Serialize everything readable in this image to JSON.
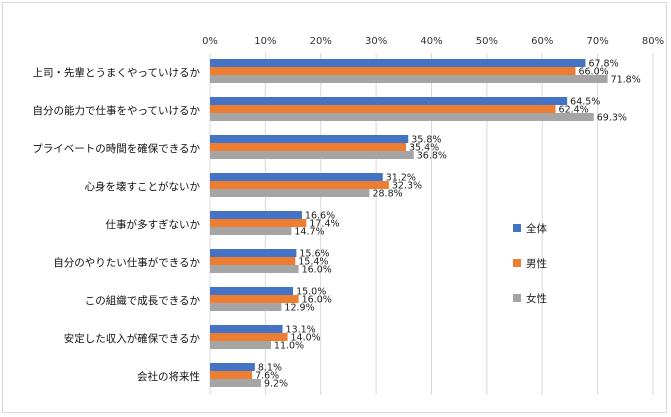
{
  "chart_data": {
    "type": "bar",
    "orientation": "horizontal",
    "x_ticks": [
      "0%",
      "10%",
      "20%",
      "30%",
      "40%",
      "50%",
      "60%",
      "70%",
      "80%"
    ],
    "xlim": [
      0,
      80
    ],
    "grid": true,
    "legend_position": "right",
    "categories": [
      "上司・先輩とうまくやっていけるか",
      "自分の能力で仕事をやっていけるか",
      "プライベートの時間を確保できるか",
      "心身を壊すことがないか",
      "仕事が多すぎないか",
      "自分のやりたい仕事ができるか",
      "この組織で成長できるか",
      "安定した収入が確保できるか",
      "会社の将来性"
    ],
    "series": [
      {
        "name": "全体",
        "color": "#4472C4",
        "values": [
          67.8,
          64.5,
          35.8,
          31.2,
          16.6,
          15.6,
          15.0,
          13.1,
          8.1
        ],
        "labels": [
          "67.8%",
          "64.5%",
          "35.8%",
          "31.2%",
          "16.6%",
          "15.6%",
          "15.0%",
          "13.1%",
          "8.1%"
        ]
      },
      {
        "name": "男性",
        "color": "#ED7D31",
        "values": [
          66.0,
          62.4,
          35.4,
          32.3,
          17.4,
          15.4,
          16.0,
          14.0,
          7.6
        ],
        "labels": [
          "66.0%",
          "62.4%",
          "35.4%",
          "32.3%",
          "17.4%",
          "15.4%",
          "16.0%",
          "14.0%",
          "7.6%"
        ]
      },
      {
        "name": "女性",
        "color": "#A5A5A5",
        "values": [
          71.8,
          69.3,
          36.8,
          28.8,
          14.7,
          16.0,
          12.9,
          11.0,
          9.2
        ],
        "labels": [
          "71.8%",
          "69.3%",
          "36.8%",
          "28.8%",
          "14.7%",
          "16.0%",
          "12.9%",
          "11.0%",
          "9.2%"
        ]
      }
    ]
  }
}
